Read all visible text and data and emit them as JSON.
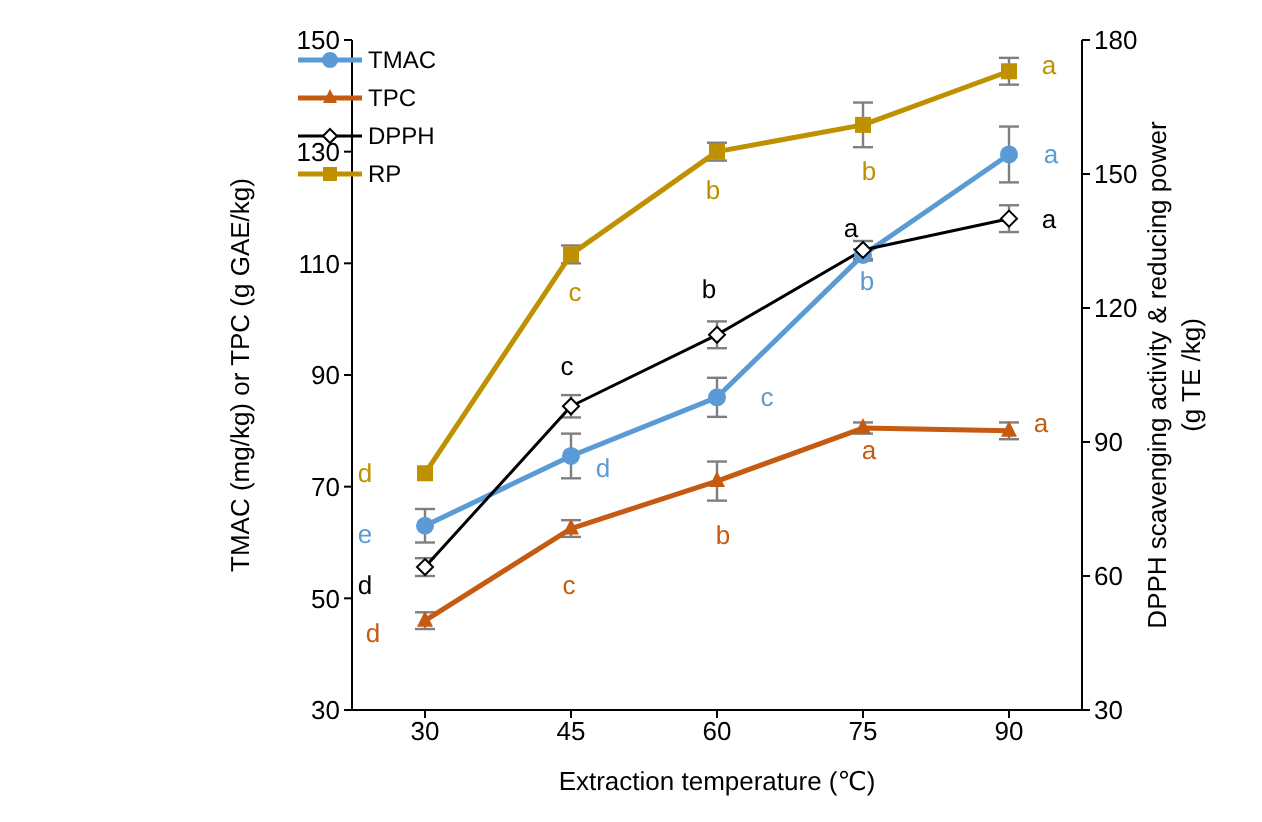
{
  "chart_data": {
    "type": "line",
    "xlabel": "Extraction temperature (℃)",
    "ylabel": "TMAC (mg/kg) or TPC (g GAE/kg)",
    "y2label": "DPPH scavenging activity & reducing power (g TE /kg)",
    "x": [
      30,
      45,
      60,
      75,
      90
    ],
    "xlim": [
      22.5,
      97.5
    ],
    "xticks": [
      30,
      45,
      60,
      75,
      90
    ],
    "ylim": [
      30,
      150
    ],
    "yticks": [
      30,
      50,
      70,
      90,
      110,
      130,
      150
    ],
    "y2lim": [
      30,
      180
    ],
    "y2ticks": [
      30,
      60,
      90,
      120,
      150,
      180
    ],
    "legend": "top left",
    "grid": false,
    "series": [
      {
        "name": "TMAC",
        "color": "#5b9bd5",
        "marker": "circle",
        "values": [
          63,
          75.5,
          86,
          111.5,
          129.5
        ],
        "errors": [
          3,
          4,
          3.5,
          1,
          5
        ]
      },
      {
        "name": "TPC",
        "color": "#c55a11",
        "marker": "triangle",
        "values": [
          46,
          62.5,
          71,
          80.5,
          80
        ],
        "errors": [
          1.5,
          1.5,
          3.5,
          1,
          1.5
        ]
      },
      {
        "name": "DPPH",
        "color": "#000000",
        "marker": "diamond",
        "axis": "y2",
        "values": [
          62,
          98,
          114,
          133,
          140
        ],
        "errors": [
          2,
          2.5,
          3,
          2,
          3
        ]
      },
      {
        "name": "RP",
        "color": "#bf9000",
        "marker": "square",
        "axis": "y2",
        "values": [
          83,
          132,
          155,
          161,
          173
        ],
        "errors": [
          null,
          2,
          2,
          5,
          3
        ]
      }
    ],
    "annotations": [
      "e",
      "d",
      "c",
      "b",
      "a",
      "d",
      "c",
      "b",
      "a",
      "a",
      "d",
      "c",
      "b",
      "a",
      "a",
      "d",
      "c",
      "b",
      "b",
      "a"
    ]
  }
}
